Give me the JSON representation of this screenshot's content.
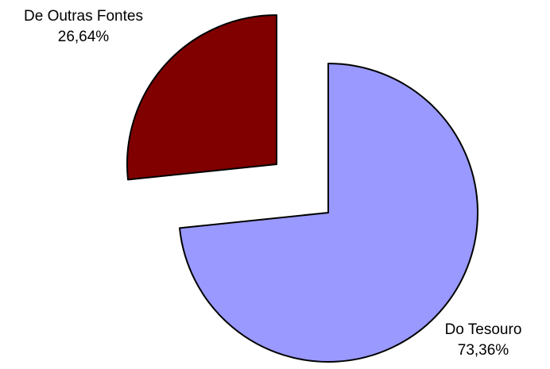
{
  "chart_data": {
    "type": "pie",
    "title": "",
    "exploded": true,
    "legend": "none",
    "slices": [
      {
        "label": "Do Tesouro",
        "value": 73.36,
        "value_label": "73,36%",
        "color": "#9999FF"
      },
      {
        "label": "De Outras Fontes",
        "value": 26.64,
        "value_label": "26,64%",
        "color": "#800000"
      }
    ]
  }
}
